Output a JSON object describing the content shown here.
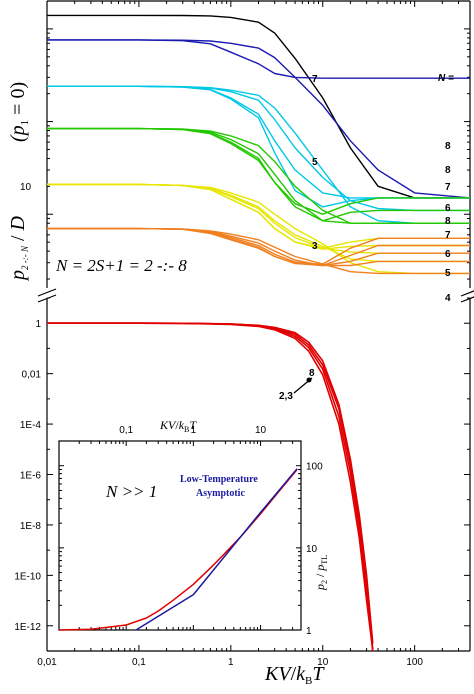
{
  "chart_data": [
    {
      "panel": "upper",
      "type": "line",
      "x_scale": "log",
      "xlim": [
        0.01,
        400
      ],
      "y_scale": "log",
      "y_tick_labels": [
        "10"
      ],
      "ylabel_top": "(p1 = 0)",
      "ylabel_bottom": "p2-:-N / D",
      "annotation": "N = 2S+1 = 2 -:- 8",
      "n_header": "N =",
      "group_labels": [
        "7",
        "5",
        "3"
      ],
      "end_labels": [
        "8",
        "8",
        "7",
        "6",
        "8",
        "7",
        "6",
        "5",
        "4"
      ],
      "series": [
        {
          "color": "#000000",
          "values": [
            1400,
            1400,
            1395,
            1380,
            1330,
            1180,
            900,
            480,
            180,
            52,
            20,
            15,
            15
          ]
        },
        {
          "color": "#1a1ab0",
          "values": [
            760,
            760,
            745,
            690,
            560,
            420,
            330,
            300,
            294,
            294,
            294,
            294,
            294
          ]
        },
        {
          "color": "#1a1ab0",
          "values": [
            760,
            760,
            756,
            740,
            700,
            620,
            490,
            300,
            150,
            62,
            30,
            17,
            15
          ]
        },
        {
          "color": "#00c8e6",
          "values": [
            240,
            240,
            236,
            222,
            180,
            120,
            62,
            30,
            17,
            15,
            15,
            15,
            15
          ]
        },
        {
          "color": "#00c8e6",
          "values": [
            240,
            240,
            236,
            220,
            175,
            110,
            46,
            18,
            12,
            14,
            15,
            15,
            15
          ]
        },
        {
          "color": "#00c8e6",
          "values": [
            240,
            240,
            238,
            230,
            210,
            170,
            105,
            52,
            25,
            14,
            11.5,
            11,
            11
          ]
        },
        {
          "color": "#00c8e6",
          "values": [
            240,
            240,
            238,
            232,
            218,
            192,
            140,
            75,
            30,
            12,
            8.5,
            8,
            8
          ]
        },
        {
          "color": "#22c800",
          "values": [
            84,
            84,
            82,
            74,
            58,
            38,
            22,
            13,
            10,
            13,
            15,
            15,
            15
          ]
        },
        {
          "color": "#22c800",
          "values": [
            84,
            84,
            82,
            75,
            60,
            40,
            22,
            12,
            8.5,
            10.5,
            11,
            11,
            11
          ]
        },
        {
          "color": "#22c800",
          "values": [
            84,
            84,
            83,
            77,
            64,
            45,
            27,
            14,
            8.5,
            8,
            8,
            8,
            8
          ]
        },
        {
          "color": "#22c800",
          "values": [
            84,
            84,
            83,
            79,
            70,
            55,
            37,
            20,
            11,
            8,
            8,
            8,
            8
          ]
        },
        {
          "color": "#e6e600",
          "values": [
            21,
            21,
            20.5,
            18.5,
            14.5,
            10.5,
            7,
            5,
            4.3,
            5,
            5.5,
            5.5,
            5.5
          ]
        },
        {
          "color": "#e6e600",
          "values": [
            21,
            21,
            20.5,
            18.5,
            14.5,
            10.5,
            7,
            5,
            4.2,
            4.5,
            4.6,
            4.6,
            4.6
          ]
        },
        {
          "color": "#e6e600",
          "values": [
            21,
            21,
            20.5,
            19,
            15.5,
            11.5,
            8,
            5.6,
            4.3,
            3.9,
            3.8,
            3.8,
            3.8
          ]
        },
        {
          "color": "#e6e600",
          "values": [
            21,
            21,
            20.5,
            19,
            16,
            12,
            8.5,
            6,
            4.5,
            3.3,
            3.1,
            3.1,
            3.1
          ]
        },
        {
          "color": "#e6e600",
          "values": [
            21,
            21,
            20.5,
            19.5,
            17,
            13.5,
            10,
            7,
            4.8,
            3,
            2.4,
            2.3,
            2.3
          ]
        },
        {
          "color": "#f08020",
          "values": [
            7,
            7,
            6.9,
            6.2,
            5.3,
            4.3,
            3.5,
            2.95,
            2.9,
            4.3,
            5.5,
            5.5,
            5.5
          ]
        },
        {
          "color": "#f08020",
          "values": [
            7,
            7,
            6.9,
            6.3,
            5.4,
            4.4,
            3.5,
            2.95,
            2.8,
            3.6,
            4.6,
            4.6,
            4.6
          ]
        },
        {
          "color": "#f08020",
          "values": [
            7,
            7,
            6.9,
            6.4,
            5.6,
            4.6,
            3.7,
            3.05,
            2.8,
            3.1,
            3.8,
            3.8,
            3.8
          ]
        },
        {
          "color": "#f08020",
          "values": [
            7,
            7,
            6.9,
            6.5,
            5.8,
            4.9,
            4,
            3.2,
            2.8,
            2.8,
            3.1,
            3.1,
            3.1
          ]
        },
        {
          "color": "#f08020",
          "values": [
            7,
            7,
            6.95,
            6.6,
            6.1,
            5.3,
            4.4,
            3.5,
            2.9,
            2.4,
            2.3,
            2.3,
            2.3
          ]
        }
      ],
      "x": [
        0.01,
        0.1,
        0.3,
        0.6,
        1,
        2,
        3,
        5,
        10,
        20,
        40,
        100,
        400
      ]
    },
    {
      "panel": "lower",
      "type": "line",
      "x_scale": "log",
      "xlim": [
        0.01,
        400
      ],
      "x_tick_labels": [
        "0,01",
        "0,1",
        "1",
        "10",
        "100"
      ],
      "xlabel": "KV/kBT",
      "y_scale": "log",
      "ylim": [
        1e-13,
        10
      ],
      "y_tick_labels": [
        "1",
        "0,01",
        "1E-4",
        "1E-6",
        "1E-8",
        "1E-10",
        "1E-12"
      ],
      "point_labels": [
        "8",
        "2,3"
      ],
      "color": "#e00000",
      "x": [
        0.01,
        0.1,
        0.3,
        1,
        2,
        3,
        5,
        7,
        10,
        15,
        20,
        25,
        30,
        35
      ],
      "series": [
        {
          "values": [
            1,
            1,
            0.99,
            0.9,
            0.75,
            0.55,
            0.25,
            0.08,
            0.009,
            0.0001,
            5e-07,
            3e-09,
            1e-11,
            1e-14
          ]
        },
        {
          "values": [
            1,
            1,
            0.99,
            0.92,
            0.78,
            0.6,
            0.3,
            0.11,
            0.015,
            0.0002,
            1.2e-06,
            7e-09,
            3e-11,
            5e-14
          ]
        },
        {
          "values": [
            1,
            1,
            0.99,
            0.93,
            0.8,
            0.64,
            0.36,
            0.14,
            0.022,
            0.0004,
            2.5e-06,
            1.5e-08,
            6e-11,
            1e-13
          ]
        },
        {
          "values": [
            1,
            1,
            0.99,
            0.94,
            0.83,
            0.68,
            0.42,
            0.18,
            0.032,
            0.0006,
            4e-06,
            2.5e-08,
            1e-10,
            2e-13
          ]
        }
      ]
    },
    {
      "panel": "inset",
      "type": "line",
      "x_scale": "log",
      "xlim": [
        0.01,
        40
      ],
      "x_tick_labels": [
        "0,1",
        "1",
        "10"
      ],
      "xlabel": "KV/kBT",
      "y_scale": "log",
      "ylim": [
        1,
        200
      ],
      "y_tick_labels": [
        "1",
        "10",
        "100"
      ],
      "ylabel": "p2 / pTL",
      "annotation": "N >> 1",
      "legend": [
        "Low-Temperature",
        "Asymptotic"
      ],
      "series": [
        {
          "color": "#e00000",
          "x": [
            0.01,
            0.03,
            0.1,
            0.2,
            0.3,
            0.5,
            1,
            2,
            3,
            5,
            10,
            20,
            35
          ],
          "values": [
            1,
            1.02,
            1.15,
            1.4,
            1.7,
            2.3,
            3.6,
            6.2,
            8.7,
            13.5,
            26,
            52,
            90
          ]
        },
        {
          "color": "#1a1aa0",
          "x": [
            0.14,
            1,
            5,
            10,
            35
          ],
          "values": [
            1,
            2.7,
            13.5,
            27,
            92
          ]
        }
      ]
    }
  ]
}
